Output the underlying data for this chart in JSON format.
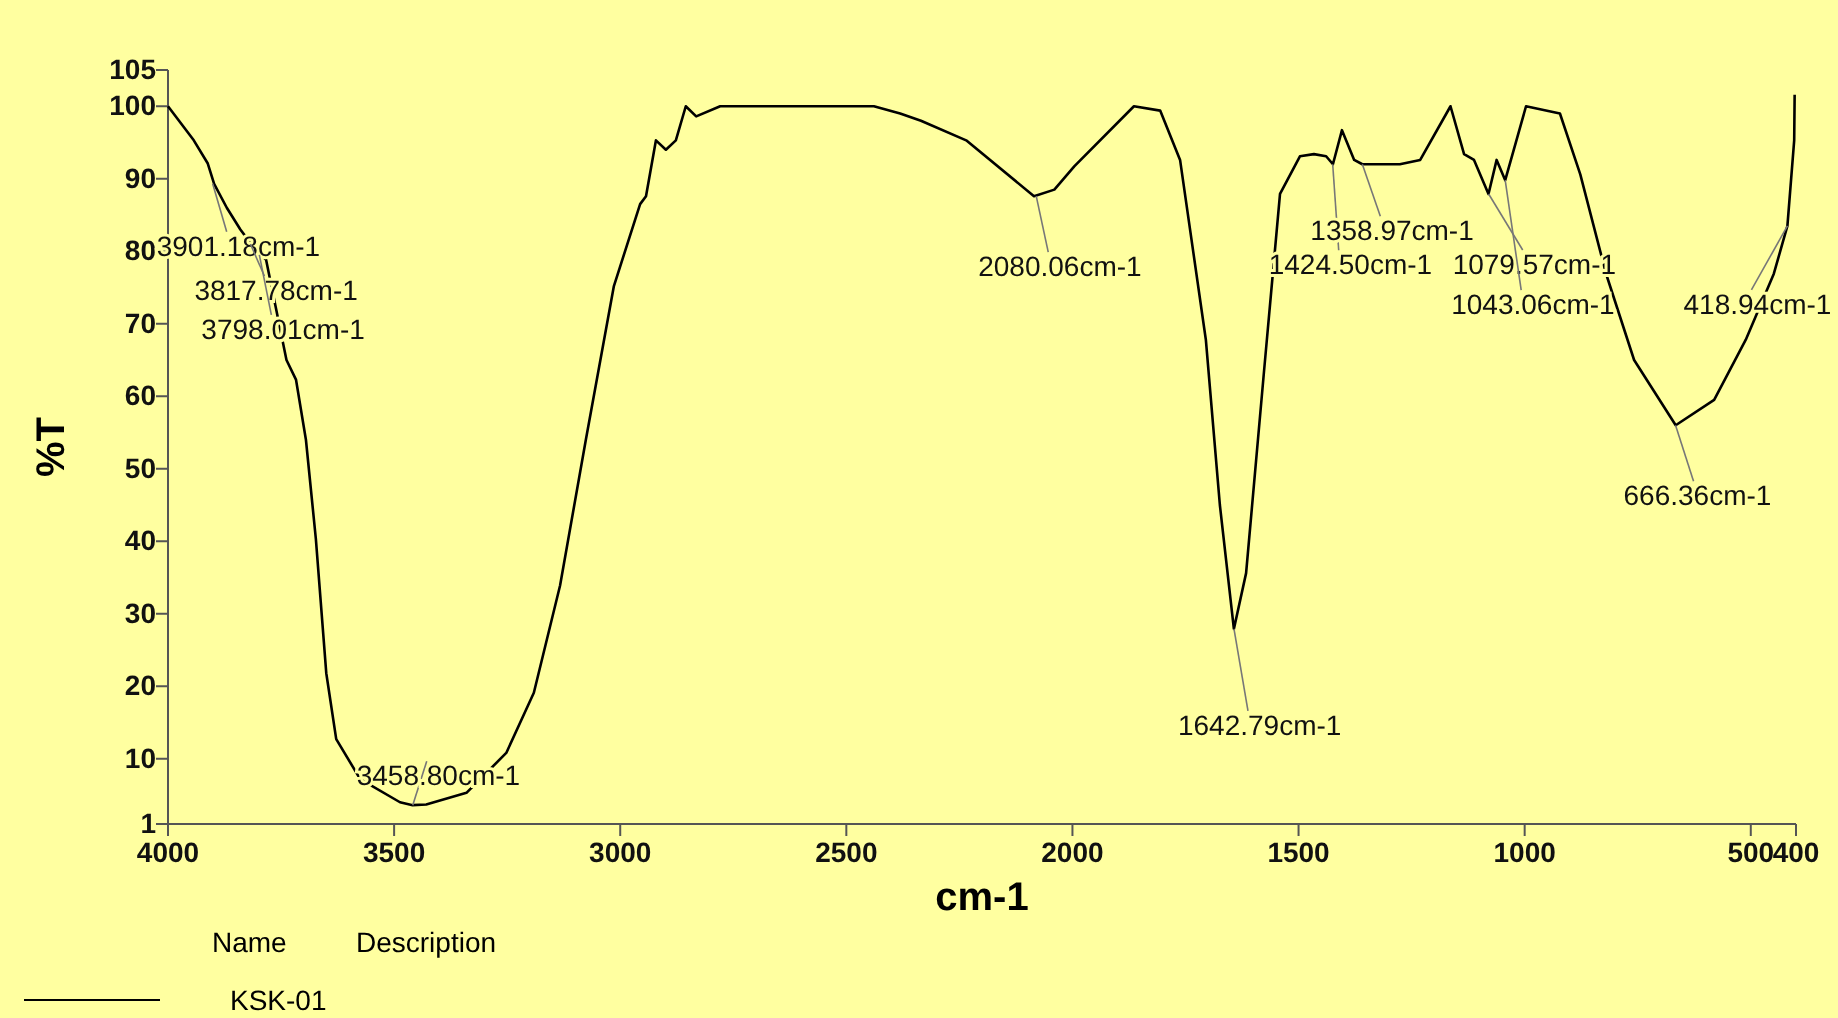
{
  "chart_data": {
    "type": "line",
    "xlabel": "cm-1",
    "ylabel": "%T",
    "legend_title": "Name",
    "legend": "bottom",
    "grid": false,
    "xlim": [
      4000,
      400
    ],
    "xticks": [
      4000,
      3500,
      3000,
      2500,
      2000,
      1500,
      1000,
      500,
      400
    ],
    "ylim": [
      1,
      105
    ],
    "yticks": [
      1,
      10,
      20,
      30,
      40,
      50,
      60,
      70,
      80,
      90,
      100,
      105
    ],
    "x": [
      4000,
      3943,
      3912,
      3898,
      3870,
      3840,
      3810,
      3783,
      3738,
      3717,
      3695,
      3673,
      3650,
      3628,
      3575,
      3487,
      3459,
      3429,
      3340,
      3252,
      3191,
      3133,
      3076,
      3014,
      2956,
      2943,
      2921,
      2899,
      2877,
      2855,
      2832,
      2779,
      2600,
      2439,
      2381,
      2335,
      2235,
      2085,
      2040,
      1996,
      1864,
      1806,
      1762,
      1705,
      1674,
      1643,
      1616,
      1577,
      1541,
      1497,
      1466,
      1439,
      1424,
      1404,
      1377,
      1359,
      1276,
      1231,
      1164,
      1134,
      1112,
      1080,
      1062,
      1043,
      997,
      922,
      877,
      820,
      758,
      666,
      581,
      511,
      449,
      419,
      404,
      403
    ],
    "series": [
      {
        "name": "KSK-01",
        "color": "#000000",
        "values": [
          100,
          95.3,
          92.1,
          89.3,
          86,
          83,
          80.5,
          78.8,
          65,
          62.3,
          54,
          40.3,
          21.8,
          12.7,
          7.2,
          4,
          3.6,
          3.7,
          5.3,
          10.8,
          19.1,
          33.9,
          54,
          75.2,
          86.5,
          87.6,
          95.3,
          94,
          95.3,
          100,
          98.6,
          100,
          100,
          100,
          99,
          98,
          95.3,
          87.6,
          88.5,
          91.7,
          100,
          99.4,
          92.6,
          67.8,
          45,
          27.9,
          35.6,
          63,
          87.9,
          93.1,
          93.4,
          93.1,
          92,
          96.7,
          92.6,
          92,
          92,
          92.6,
          100,
          93.4,
          92.6,
          87.9,
          92.6,
          89.8,
          100,
          99,
          90.6,
          76.9,
          65,
          56,
          59.5,
          67.8,
          76.9,
          83.5,
          95.3,
          101.6
        ]
      }
    ],
    "annotations": [
      {
        "text": "3901.18cm-1",
        "x": 3901.18,
        "y": 89.3
      },
      {
        "text": "3817.78cm-1",
        "x": 3817.78,
        "y": 81
      },
      {
        "text": "3798.01cm-1",
        "x": 3798.01,
        "y": 79.5
      },
      {
        "text": "3458.80cm-1",
        "x": 3458.8,
        "y": 3.6
      },
      {
        "text": "2080.06cm-1",
        "x": 2080.06,
        "y": 87.6
      },
      {
        "text": "1642.79cm-1",
        "x": 1642.79,
        "y": 27.9
      },
      {
        "text": "1424.50cm-1",
        "x": 1424.5,
        "y": 92
      },
      {
        "text": "1358.97cm-1",
        "x": 1358.97,
        "y": 92
      },
      {
        "text": "1079.57cm-1",
        "x": 1079.57,
        "y": 87.9
      },
      {
        "text": "1043.06cm-1",
        "x": 1043.06,
        "y": 89.8
      },
      {
        "text": "666.36cm-1",
        "x": 666.36,
        "y": 56
      },
      {
        "text": "418.94cm-1",
        "x": 418.94,
        "y": 83.5
      },
      "Description"
    ]
  }
}
